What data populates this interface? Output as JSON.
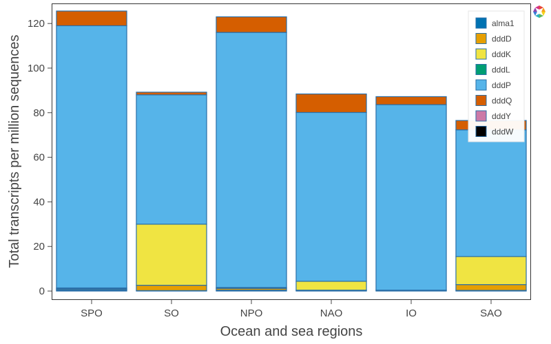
{
  "chart_data": {
    "type": "bar",
    "stacked": true,
    "xlabel": "Ocean and sea regions",
    "ylabel": "Total transcripts per million sequences",
    "categories": [
      "SPO",
      "SO",
      "NPO",
      "NAO",
      "IO",
      "SAO"
    ],
    "ylim": [
      -4,
      129
    ],
    "yticks": [
      0,
      20,
      40,
      60,
      80,
      100,
      120
    ],
    "grid": false,
    "legend_position": "top-right",
    "series": [
      {
        "name": "alma1",
        "color": "#0072B2",
        "values": [
          0.4,
          0.2,
          0.4,
          0.2,
          0.3,
          0.3
        ]
      },
      {
        "name": "dddD",
        "color": "#E69F00",
        "values": [
          0.3,
          2.4,
          0.8,
          0.2,
          0.1,
          2.6
        ]
      },
      {
        "name": "dddK",
        "color": "#F0E442",
        "values": [
          0.4,
          27.4,
          0.1,
          4.0,
          0.0,
          12.6
        ]
      },
      {
        "name": "dddL",
        "color": "#009E73",
        "values": [
          0.3,
          0.0,
          0.3,
          0.0,
          0.0,
          0.0
        ]
      },
      {
        "name": "dddP",
        "color": "#56B4E9",
        "values": [
          117.6,
          58.0,
          114.4,
          75.7,
          83.2,
          56.8
        ]
      },
      {
        "name": "dddQ",
        "color": "#D55E00",
        "values": [
          6.6,
          1.2,
          7.0,
          8.3,
          3.6,
          4.2
        ]
      },
      {
        "name": "dddY",
        "color": "#CC79A7",
        "values": [
          0.0,
          0.0,
          0.0,
          0.0,
          0.0,
          0.0
        ]
      },
      {
        "name": "dddW",
        "color": "#000000",
        "values": [
          0.0,
          0.0,
          0.0,
          0.0,
          0.0,
          0.0
        ]
      }
    ],
    "bar_outline_color": "#2a6fa8"
  },
  "toolbar": {
    "logo_icon": "bokeh-logo-icon"
  }
}
